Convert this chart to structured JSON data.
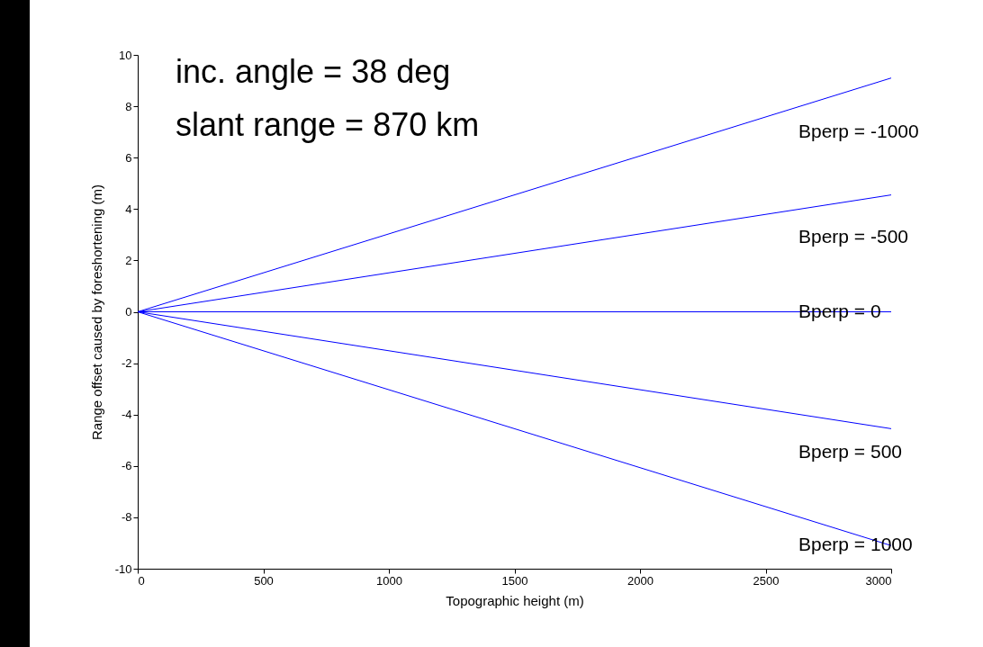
{
  "chart_data": {
    "type": "line",
    "xlabel": "Topographic height (m)",
    "ylabel": "Range offset caused by foreshortening (m)",
    "x": [
      0,
      3000
    ],
    "series": [
      {
        "name": "Bperp = -1000",
        "color": "#0000ff",
        "values": [
          0,
          9.1
        ]
      },
      {
        "name": "Bperp = -500",
        "color": "#0000ff",
        "values": [
          0,
          4.55
        ]
      },
      {
        "name": "Bperp = 0",
        "color": "#0000ff",
        "values": [
          0,
          0
        ]
      },
      {
        "name": "Bperp = 500",
        "color": "#0000ff",
        "values": [
          0,
          -4.55
        ]
      },
      {
        "name": "Bperp = 1000",
        "color": "#0000ff",
        "values": [
          0,
          -9.1
        ]
      }
    ],
    "annotations": [
      "inc. angle = 38 deg",
      "slant range = 870 km"
    ],
    "xlim": [
      0,
      3000
    ],
    "xticks": [
      0,
      500,
      1000,
      1500,
      2000,
      2500,
      3000
    ],
    "ylim": [
      -10,
      10
    ],
    "yticks": [
      -10,
      -8,
      -6,
      -4,
      -2,
      0,
      2,
      4,
      6,
      8,
      10
    ],
    "grid": false,
    "legend": false,
    "marker": "none",
    "line_style": "solid"
  }
}
